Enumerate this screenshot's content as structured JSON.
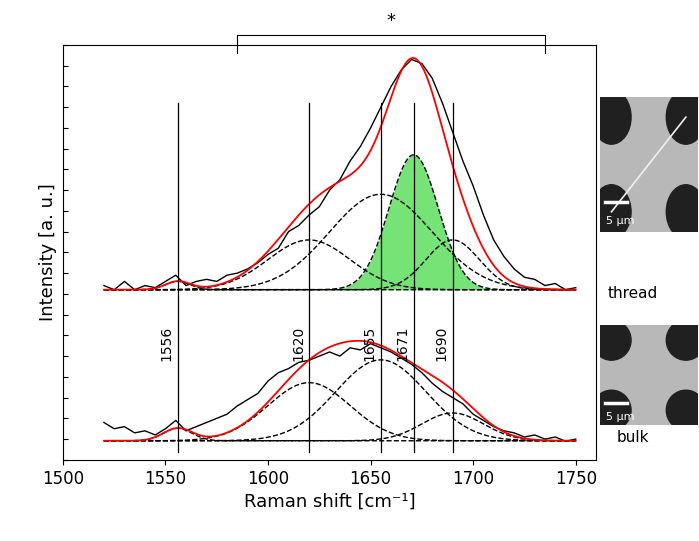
{
  "chart_data": {
    "type": "line",
    "x_label": "Raman shift [cm⁻¹]",
    "y_label": "Intensity [a. u.]",
    "xlim": [
      1500,
      1760
    ],
    "xticks": [
      1500,
      1550,
      1600,
      1650,
      1700,
      1750
    ],
    "ylim": [
      0,
      10
    ],
    "yticks": [
      0,
      0.5,
      1,
      1.5,
      2,
      2.5,
      3,
      3.5,
      4,
      4.5,
      5,
      5.5,
      6,
      6.5,
      7,
      7.5,
      8,
      8.5,
      9,
      9.5,
      10
    ],
    "tick_labels": "x",
    "grid": false,
    "vertical_lines": [
      1556,
      1620,
      1655,
      1671,
      1690
    ],
    "bracket": {
      "x": [
        1585,
        1735
      ],
      "label": "*"
    },
    "x": [
      1520,
      1525,
      1530,
      1535,
      1540,
      1545,
      1550,
      1555,
      1560,
      1565,
      1570,
      1575,
      1580,
      1585,
      1590,
      1595,
      1600,
      1605,
      1610,
      1615,
      1620,
      1625,
      1630,
      1635,
      1640,
      1645,
      1650,
      1655,
      1660,
      1665,
      1670,
      1675,
      1680,
      1685,
      1690,
      1695,
      1700,
      1705,
      1710,
      1715,
      1720,
      1725,
      1730,
      1735,
      1740,
      1745,
      1750
    ],
    "series": [
      {
        "name": "thread",
        "color": "#000000",
        "scale_bar": "5 µm",
        "values": [
          4.2,
          4.1,
          4.3,
          4.1,
          4.2,
          4.15,
          4.3,
          4.45,
          4.2,
          4.3,
          4.35,
          4.3,
          4.45,
          4.5,
          4.6,
          4.75,
          4.95,
          5.1,
          5.5,
          5.65,
          5.9,
          6.1,
          6.5,
          6.75,
          7.2,
          7.55,
          8.0,
          8.5,
          9.0,
          9.4,
          9.65,
          9.55,
          9.2,
          8.6,
          7.9,
          7.2,
          6.6,
          5.9,
          5.3,
          4.9,
          4.6,
          4.4,
          4.35,
          4.2,
          4.25,
          4.1,
          4.15
        ],
        "baseline": 4.1,
        "components": [
          {
            "center": 1556,
            "height": 0.2,
            "width": 6
          },
          {
            "center": 1620,
            "height": 1.2,
            "width": 20
          },
          {
            "center": 1655,
            "height": 2.3,
            "width": 25
          },
          {
            "center": 1671,
            "height": 3.25,
            "width": 12,
            "color": "#66e066"
          },
          {
            "center": 1690,
            "height": 1.2,
            "width": 13
          }
        ]
      },
      {
        "name": "bulk",
        "color": "#000000",
        "scale_bar": "5 µm",
        "values": [
          0.9,
          0.75,
          0.8,
          0.65,
          0.7,
          0.6,
          0.75,
          0.95,
          0.7,
          0.8,
          0.9,
          1.0,
          1.1,
          1.3,
          1.45,
          1.6,
          1.9,
          2.1,
          2.2,
          2.35,
          2.4,
          2.5,
          2.6,
          2.5,
          2.7,
          2.65,
          2.8,
          2.7,
          2.6,
          2.45,
          2.3,
          2.1,
          1.85,
          1.65,
          1.5,
          1.35,
          1.1,
          0.95,
          0.8,
          0.7,
          0.65,
          0.55,
          0.6,
          0.5,
          0.55,
          0.45,
          0.5
        ],
        "baseline": 0.46,
        "components": [
          {
            "center": 1556,
            "height": 0.3,
            "width": 7
          },
          {
            "center": 1620,
            "height": 1.4,
            "width": 20
          },
          {
            "center": 1655,
            "height": 1.95,
            "width": 22
          },
          {
            "center": 1690,
            "height": 0.67,
            "width": 15
          }
        ]
      }
    ]
  }
}
